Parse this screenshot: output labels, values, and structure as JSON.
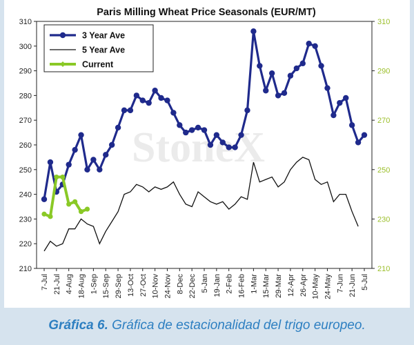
{
  "caption": {
    "lead": "Gráfica 6.",
    "text": "Gráfica de estacionalidad del trigo europeo."
  },
  "watermark": "StoneX",
  "colors": {
    "three_year": "#1f2a8c",
    "five_year": "#111111",
    "current": "#8ac926",
    "right_axis": "#9bbf2a",
    "caption": "#2d7fc1"
  },
  "chart_data": {
    "type": "line",
    "title": "Paris Milling Wheat Price Seasonals (EUR/MT)",
    "xlabel": "",
    "ylabel": "",
    "ylim": [
      210,
      310
    ],
    "y2lim": [
      210,
      310
    ],
    "yticks": [
      210,
      220,
      230,
      240,
      250,
      260,
      270,
      280,
      290,
      300,
      310
    ],
    "y2ticks": [
      210,
      230,
      250,
      270,
      290,
      310
    ],
    "x_tick_labels": [
      "7-Jul",
      "21-Jul",
      "4-Aug",
      "18-Aug",
      "1-Sep",
      "15-Sep",
      "29-Sep",
      "13-Oct",
      "27-Oct",
      "10-Nov",
      "24-Nov",
      "8-Dec",
      "22-Dec",
      "5-Jan",
      "19-Jan",
      "2-Feb",
      "16-Feb",
      "1-Mar",
      "15-Mar",
      "29-Mar",
      "12-Apr",
      "26-Apr",
      "10-May",
      "24-May",
      "7-Jun",
      "21-Jun",
      "5-Jul"
    ],
    "legend_position": "top-left",
    "grid": false,
    "series": [
      {
        "name": "3 Year Ave",
        "values": [
          238,
          253,
          241,
          244,
          252,
          258,
          264,
          250,
          254,
          250,
          256,
          260,
          267,
          274,
          274,
          280,
          278,
          277,
          282,
          279,
          278,
          273,
          268,
          265,
          266,
          267,
          266,
          260,
          264,
          261,
          259,
          259,
          264,
          274,
          306,
          292,
          282,
          289,
          280,
          281,
          288,
          291,
          293,
          301,
          300,
          292,
          283,
          272,
          277,
          279,
          268,
          261,
          264
        ]
      },
      {
        "name": "5 Year Ave",
        "values": [
          217,
          221,
          219,
          220,
          226,
          226,
          230,
          228,
          227,
          220,
          225,
          229,
          233,
          240,
          241,
          244,
          243,
          241,
          243,
          242,
          243,
          245,
          240,
          236,
          235,
          241,
          239,
          237,
          236,
          237,
          234,
          236,
          239,
          238,
          253,
          245,
          246,
          247,
          243,
          245,
          250,
          253,
          255,
          254,
          246,
          244,
          245,
          237,
          240,
          240,
          233,
          227
        ]
      },
      {
        "name": "Current",
        "values": [
          232,
          231,
          247,
          247,
          236,
          237,
          233,
          234
        ]
      }
    ]
  }
}
